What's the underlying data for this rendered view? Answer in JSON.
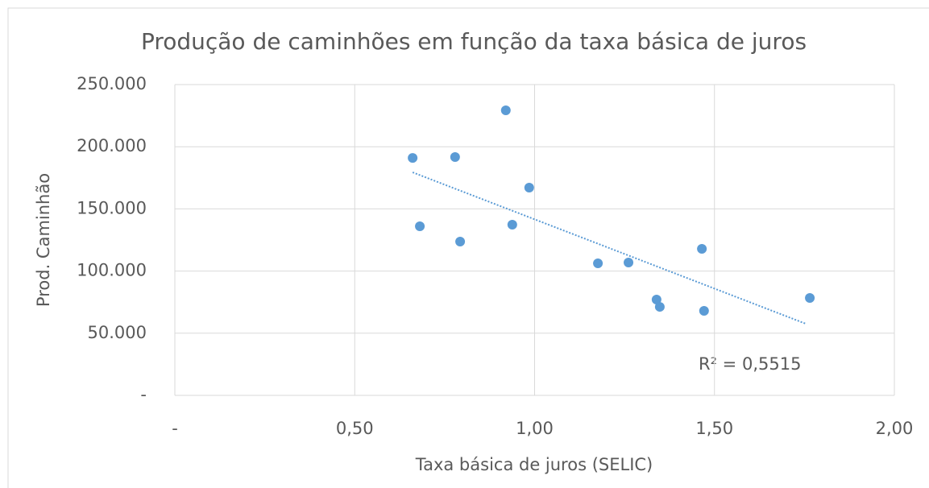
{
  "chart_data": {
    "type": "scatter",
    "title": "Produção de caminhões em função da taxa básica de juros",
    "xlabel": "Taxa básica de juros (SELIC)",
    "ylabel": "Prod. Caminhão",
    "annotation": "R² = 0,5515",
    "series": [
      {
        "color": "#5b9bd5",
        "x": [
          0.661,
          0.681,
          0.779,
          0.793,
          0.92,
          0.938,
          0.985,
          1.176,
          1.261,
          1.339,
          1.348,
          1.465,
          1.471,
          1.765
        ],
        "values": [
          191000,
          136000,
          191700,
          123700,
          229300,
          137300,
          167100,
          106200,
          106900,
          77100,
          71200,
          117900,
          68000,
          78400
        ]
      }
    ],
    "trendline": {
      "color": "#5b9bd5",
      "x": [
        0.661,
        1.754
      ],
      "values": [
        179400,
        57600
      ]
    },
    "xlim": [
      0,
      2
    ],
    "xticks": [
      {
        "value": 0,
        "label": "-"
      },
      {
        "value": 0.5,
        "label": "0,50"
      },
      {
        "value": 1,
        "label": "1,00"
      },
      {
        "value": 1.5,
        "label": "1,50"
      },
      {
        "value": 2,
        "label": "2,00"
      }
    ],
    "ylim": [
      0,
      250000
    ],
    "yticks": [
      {
        "value": 0,
        "label": "-"
      },
      {
        "value": 50000,
        "label": "50.000"
      },
      {
        "value": 100000,
        "label": "100.000"
      },
      {
        "value": 150000,
        "label": "150.000"
      },
      {
        "value": 200000,
        "label": "200.000"
      },
      {
        "value": 250000,
        "label": "250.000"
      }
    ],
    "grid": true
  }
}
